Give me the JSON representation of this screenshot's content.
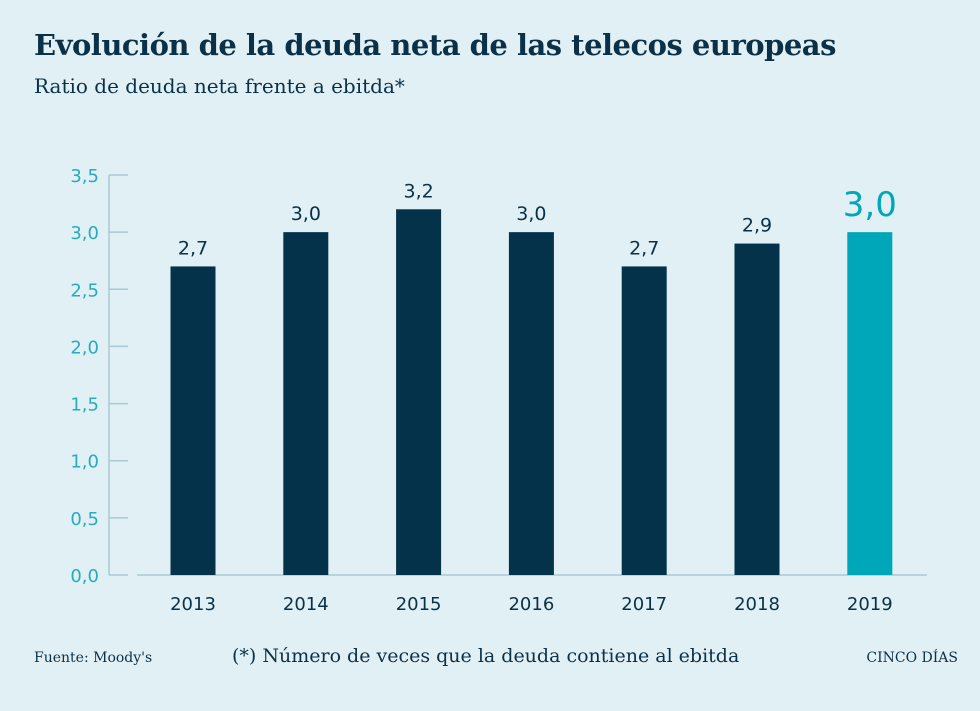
{
  "header": {
    "title": "Evolución de la deuda neta de las telecos europeas",
    "subtitle": "Ratio de deuda neta frente a ebitda*"
  },
  "footer": {
    "source": "Fuente: Moody's",
    "note": "(*) Número de veces que la deuda contiene al ebitda",
    "brand": "CINCO DÍAS"
  },
  "chart_data": {
    "type": "bar",
    "title": "Evolución de la deuda neta de las telecos europeas",
    "subtitle": "Ratio de deuda neta frente a ebitda*",
    "categories": [
      "2013",
      "2014",
      "2015",
      "2016",
      "2017",
      "2018",
      "2019"
    ],
    "values": [
      2.7,
      3.0,
      3.2,
      3.0,
      2.7,
      2.9,
      3.0
    ],
    "data_labels": [
      "2,7",
      "3,0",
      "3,2",
      "3,0",
      "2,7",
      "2,9",
      "3,0"
    ],
    "highlight_index": 6,
    "ylim": [
      0,
      3.5
    ],
    "yticks": [
      0,
      0.5,
      1,
      1.5,
      2,
      2.5,
      3,
      3.5
    ],
    "ytick_labels": [
      "0,0",
      "0,5",
      "1,0",
      "1,5",
      "2,0",
      "2,5",
      "3,0",
      "3,5"
    ],
    "grid": false,
    "colors": {
      "bar": "#04324a",
      "highlight": "#00a7b9",
      "tick_label": "#2aabbd",
      "axis": "#a9c9d4"
    }
  }
}
